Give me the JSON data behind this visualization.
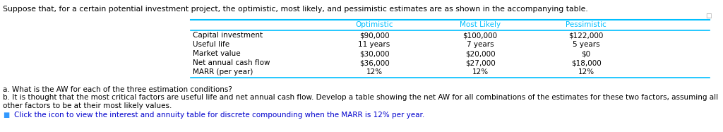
{
  "title_text": "Suppose that, for a certain potential investment project, the optimistic, most likely, and pessimistic estimates are as shown in the accompanying table.",
  "col_headers": [
    "Optimistic",
    "Most Likely",
    "Pessimistic"
  ],
  "row_labels": [
    "Capital investment",
    "Useful life",
    "Market value",
    "Net annual cash flow",
    "MARR (per year)"
  ],
  "col_optimistic": [
    "$90,000",
    "11 years",
    "$30,000",
    "$36,000",
    "12%"
  ],
  "col_most_likely": [
    "$100,000",
    "7 years",
    "$20,000",
    "$27,000",
    "12%"
  ],
  "col_pessimistic": [
    "$122,000",
    "5 years",
    "$0",
    "$18,000",
    "12%"
  ],
  "question_a": "a. What is the AW for each of the three estimation conditions?",
  "question_b": "b. It is thought that the most critical factors are useful life and net annual cash flow. Develop a table showing the net AW for all combinations of the estimates for these two factors, assuming all other factors to be at their most likely values.",
  "question_c": "Click the icon to view the interest and annuity table for discrete compounding when the MARR is 12% per year.",
  "header_color": "#00BFFF",
  "text_color": "#000000",
  "link_color": "#0000CD",
  "icon_color": "#4169E1",
  "line_color": "#00BFFF",
  "bg_color": "#FFFFFF",
  "title_fontsize": 7.8,
  "body_fontsize": 7.5,
  "question_fontsize": 7.5
}
